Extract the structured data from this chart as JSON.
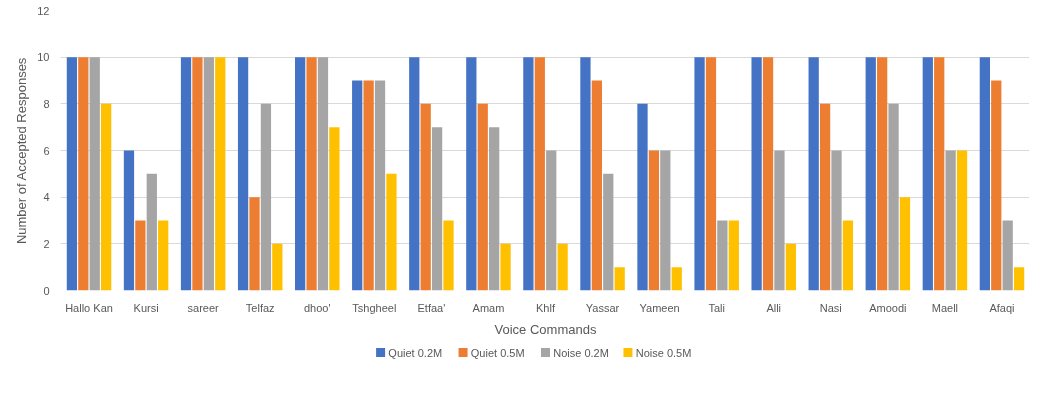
{
  "chart_data": {
    "type": "bar",
    "xlabel": "Voice Commands",
    "ylabel": "Number of Accepted Responses",
    "categories": [
      "Hallo Kan",
      "Kursi",
      "sareer",
      "Telfaz",
      "dhoo'",
      "Tshgheel",
      "Etfaa'",
      "Amam",
      "Khlf",
      "Yassar",
      "Yameen",
      "Tali",
      "Alli",
      "Nasi",
      "Amoodi",
      "Maell",
      "Afaqi"
    ],
    "series": [
      {
        "name": "Quiet 0.2M",
        "color": "#4472c4",
        "values": [
          10,
          6,
          10,
          10,
          10,
          9,
          10,
          10,
          10,
          10,
          8,
          10,
          10,
          10,
          10,
          10,
          10
        ]
      },
      {
        "name": "Quiet 0.5M",
        "color": "#ed7d31",
        "values": [
          10,
          3,
          10,
          4,
          10,
          9,
          8,
          8,
          10,
          9,
          6,
          10,
          10,
          8,
          10,
          10,
          9
        ]
      },
      {
        "name": "Noise 0.2M",
        "color": "#a5a5a5",
        "values": [
          10,
          5,
          10,
          8,
          10,
          9,
          7,
          7,
          6,
          5,
          6,
          3,
          6,
          6,
          8,
          6,
          3
        ]
      },
      {
        "name": "Noise 0.5M",
        "color": "#ffc000",
        "values": [
          8,
          3,
          10,
          2,
          7,
          5,
          3,
          2,
          2,
          1,
          1,
          3,
          2,
          3,
          4,
          6,
          1
        ]
      }
    ],
    "ylim": [
      0,
      12
    ],
    "yticks": [
      0,
      2,
      4,
      6,
      8,
      10,
      12
    ],
    "grid": "y",
    "legend": "bottom"
  }
}
